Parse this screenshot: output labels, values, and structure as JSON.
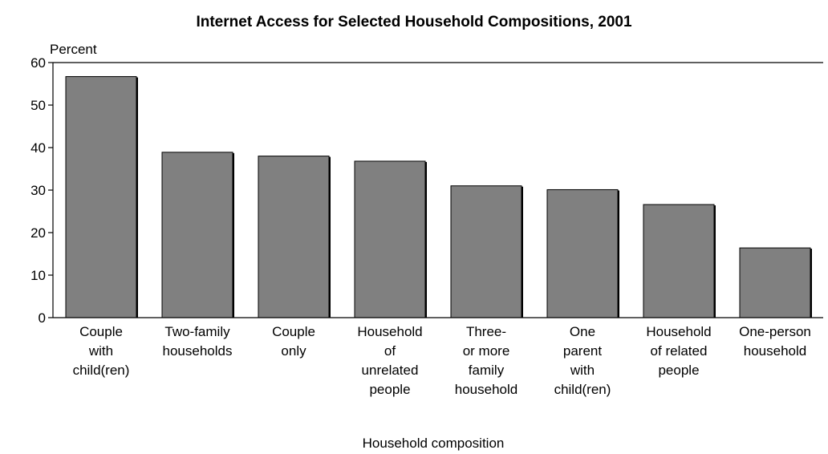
{
  "chart_data": {
    "type": "bar",
    "title": "Internet Access for Selected Household Compositions, 2001",
    "ylabel": "Percent",
    "xlabel": "Household composition",
    "ylim": [
      0,
      60
    ],
    "yticks": [
      0,
      10,
      20,
      30,
      40,
      50,
      60
    ],
    "grid": false,
    "categories": [
      [
        "Couple",
        "with",
        "child(ren)"
      ],
      [
        "Two-family",
        "households"
      ],
      [
        "Couple",
        "only"
      ],
      [
        "Household",
        "of",
        "unrelated",
        "people"
      ],
      [
        "Three-",
        "or more",
        "family",
        "household"
      ],
      [
        "One",
        "parent",
        "with",
        "child(ren)"
      ],
      [
        "Household",
        "of related",
        "people"
      ],
      [
        "One-person",
        "household"
      ]
    ],
    "values": [
      56.7,
      38.9,
      38.0,
      36.8,
      31.0,
      30.1,
      26.6,
      16.4
    ],
    "colors": {
      "bar": "#808080",
      "bar_edge": "#000000",
      "axis": "#000000"
    }
  }
}
